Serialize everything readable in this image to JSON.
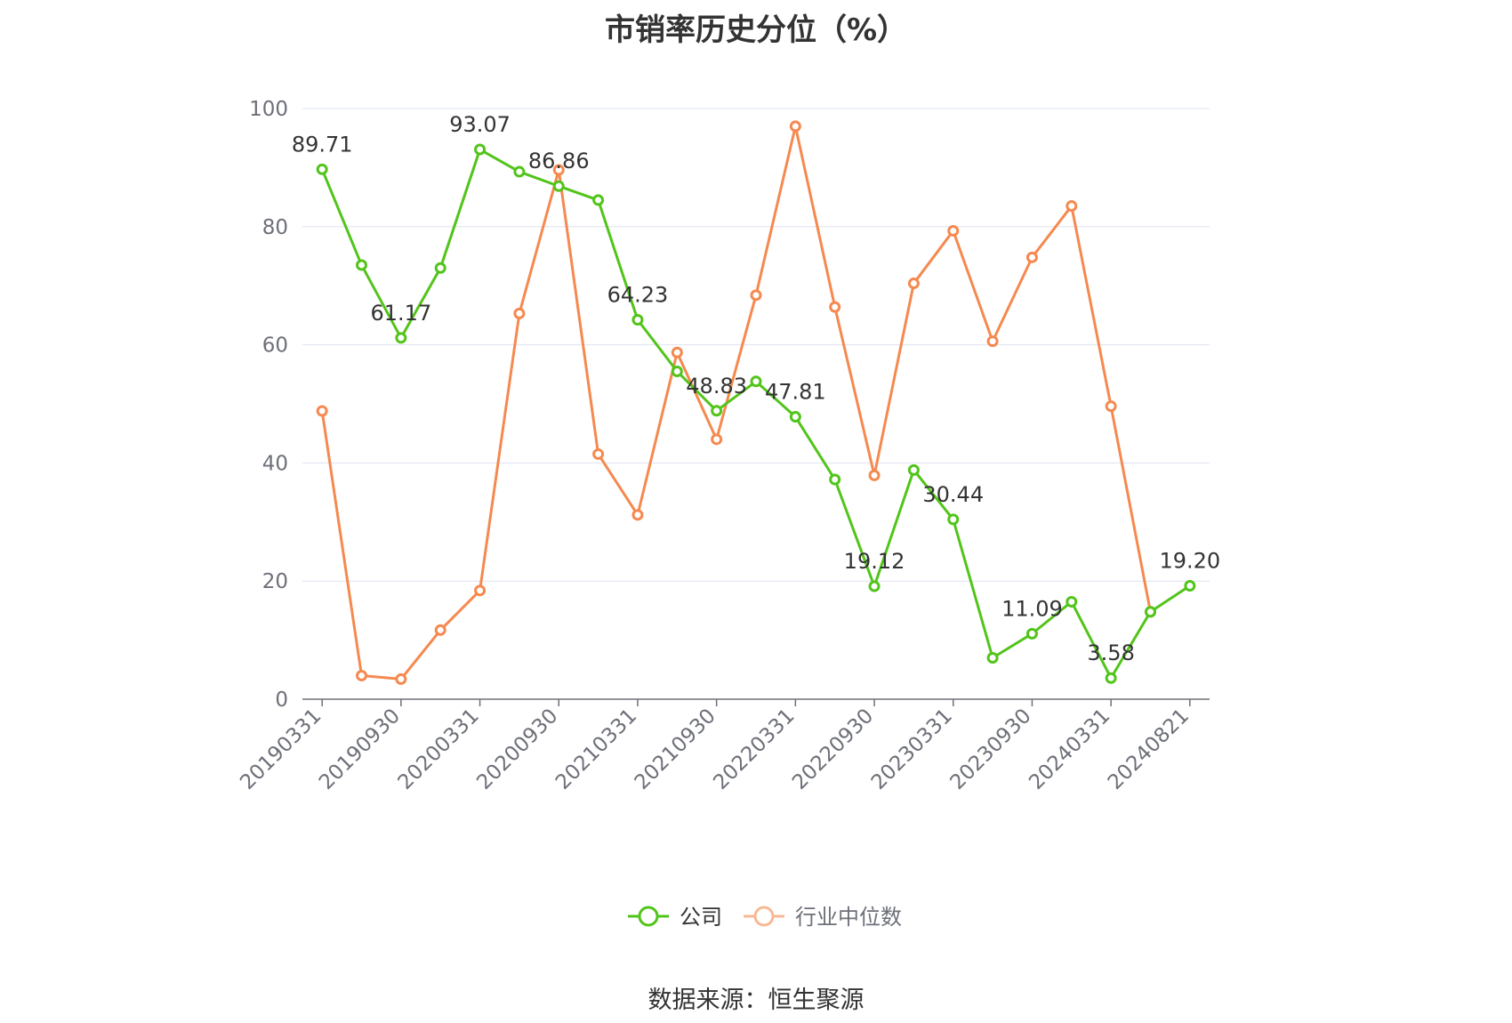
{
  "title": "市销率历史分位（%）",
  "source": "数据来源：恒生聚源",
  "colors": {
    "company": "#52c41a",
    "industry": "#f5894f",
    "industry_legend": "#f8b895",
    "grid": "#dfe3f1",
    "axis": "#6e7079"
  },
  "chart_data": {
    "type": "line",
    "ylim": [
      0,
      100
    ],
    "yticks": [
      0,
      20,
      40,
      60,
      80,
      100
    ],
    "grid": true,
    "legend": "bottom-center",
    "x": [
      "20190331",
      "20190630",
      "20190930",
      "20191231",
      "20200331",
      "20200630",
      "20200930",
      "20201231",
      "20210331",
      "20210630",
      "20210930",
      "20211231",
      "20220331",
      "20220630",
      "20220930",
      "20221231",
      "20230331",
      "20230630",
      "20230930",
      "20231231",
      "20240331",
      "20240630",
      "20240821"
    ],
    "xtick_labels": [
      "20190331",
      "20190930",
      "20200331",
      "20200930",
      "20210331",
      "20210930",
      "20220331",
      "20220930",
      "20230331",
      "20230930",
      "20240331",
      "20240821"
    ],
    "series": [
      {
        "name": "公司",
        "key": "company",
        "values": [
          89.71,
          73.5,
          61.17,
          73.0,
          93.07,
          89.3,
          86.86,
          84.5,
          64.23,
          55.5,
          48.83,
          53.8,
          47.81,
          37.2,
          19.12,
          38.8,
          30.44,
          7.0,
          11.09,
          16.5,
          3.58,
          14.8,
          19.2
        ],
        "labels": [
          "89.71",
          null,
          "61.17",
          null,
          "93.07",
          null,
          "86.86",
          null,
          "64.23",
          null,
          "48.83",
          null,
          "47.81",
          null,
          "19.12",
          null,
          "30.44",
          null,
          "11.09",
          null,
          "3.58",
          null,
          "19.20"
        ]
      },
      {
        "name": "行业中位数",
        "key": "industry",
        "values": [
          48.8,
          4.0,
          3.4,
          11.7,
          18.4,
          65.3,
          89.6,
          41.5,
          31.2,
          58.7,
          44.0,
          68.4,
          97.0,
          66.4,
          37.9,
          70.4,
          79.3,
          60.6,
          74.8,
          83.5,
          49.6,
          14.8,
          null
        ]
      }
    ]
  }
}
